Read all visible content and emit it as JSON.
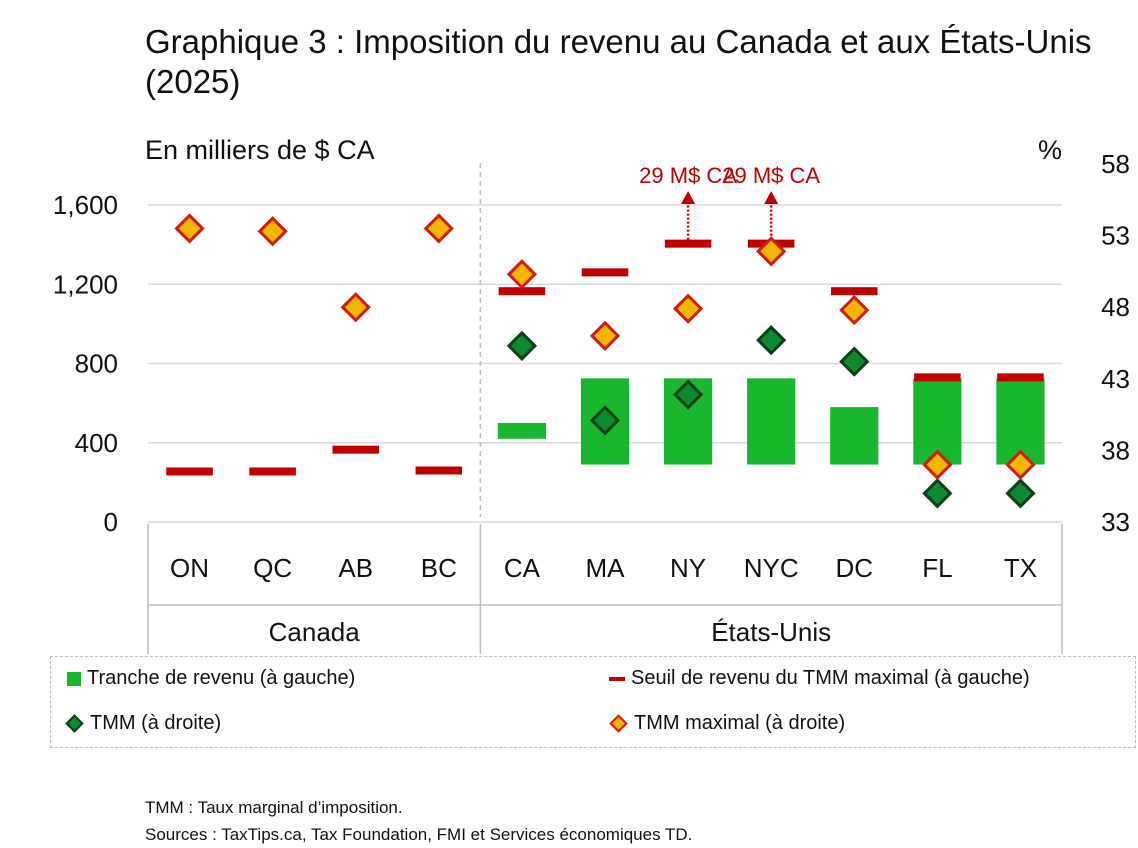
{
  "title": "Graphique 3 : Imposition du revenu au Canada et aux États-Unis (2025)",
  "left_axis_unit": "En milliers de $ CA",
  "right_axis_unit": "%",
  "legend": {
    "bracket": "Tranche de revenu (à gauche)",
    "threshold": "Seuil de revenu du TMM maximal (à gauche)",
    "tmm": "TMM (à droite)",
    "tmm_max": "TMM maximal (à droite)"
  },
  "notes": {
    "definition": "TMM : Taux marginal d’imposition.",
    "sources": "Sources : TaxTips.ca, Tax Foundation, FMI et Services économiques TD."
  },
  "colors": {
    "bracket": "#18b72e",
    "threshold": "#c00000",
    "tmm_fill": "#0e8a2e",
    "tmm_max_fill": "#f2b705",
    "tmm_max_border": "#d11a12",
    "annotation": "#c00000"
  },
  "chart_data": {
    "type": "bar",
    "categories": [
      "ON",
      "QC",
      "AB",
      "BC",
      "CA",
      "MA",
      "NY",
      "NYC",
      "DC",
      "FL",
      "TX"
    ],
    "groups": [
      {
        "label": "Canada",
        "categories": [
          "ON",
          "QC",
          "AB",
          "BC"
        ]
      },
      {
        "label": "États-Unis",
        "categories": [
          "CA",
          "MA",
          "NY",
          "NYC",
          "DC",
          "FL",
          "TX"
        ]
      }
    ],
    "left_axis": {
      "min": 0,
      "max": 1600,
      "ticks": [
        0,
        400,
        800,
        1200,
        1600
      ],
      "tick_labels": [
        "0",
        "400",
        "800",
        "1,200",
        "1,600"
      ]
    },
    "right_axis": {
      "min": 33,
      "max": 58,
      "ticks": [
        33,
        38,
        43,
        48,
        53,
        58
      ]
    },
    "series": [
      {
        "name": "Tranche de revenu (à gauche)",
        "kind": "floating-bar",
        "axis": "left",
        "values": [
          null,
          null,
          null,
          null,
          [
            420,
            500
          ],
          [
            290,
            725
          ],
          [
            290,
            725
          ],
          [
            290,
            725
          ],
          [
            290,
            580
          ],
          [
            290,
            725
          ],
          [
            290,
            725
          ]
        ]
      },
      {
        "name": "Seuil de revenu du TMM maximal (à gauche)",
        "kind": "dash",
        "axis": "left",
        "values": [
          255,
          255,
          365,
          260,
          1165,
          1260,
          1405,
          1405,
          1165,
          730,
          730
        ]
      },
      {
        "name": "TMM (à droite)",
        "kind": "diamond",
        "axis": "right",
        "values": [
          null,
          null,
          null,
          null,
          45.3,
          40.1,
          41.9,
          45.7,
          44.2,
          35.0,
          35.0
        ]
      },
      {
        "name": "TMM maximal (à droite)",
        "kind": "diamond",
        "axis": "right",
        "values": [
          53.5,
          53.3,
          48.0,
          53.5,
          50.3,
          46.0,
          47.9,
          51.9,
          47.8,
          37.0,
          37.0
        ]
      }
    ],
    "annotations": [
      {
        "category": "NY",
        "text": "29 M$ CA"
      },
      {
        "category": "NYC",
        "text": "29 M$ CA"
      }
    ],
    "grid": true,
    "legend_position": "bottom"
  }
}
